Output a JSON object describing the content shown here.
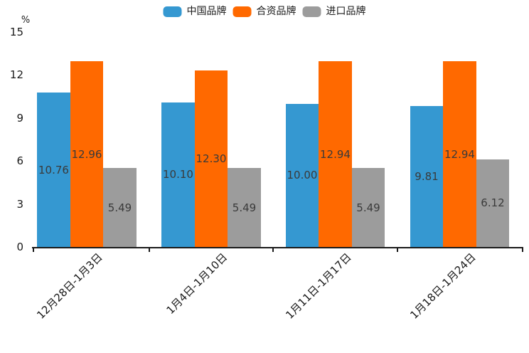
{
  "legend": {
    "position": "top",
    "items": [
      {
        "label": "中国品牌",
        "color": "#3598d1"
      },
      {
        "label": "合资品牌",
        "color": "#ff6900"
      },
      {
        "label": "进口品牌",
        "color": "#9c9c9c"
      }
    ]
  },
  "y_axis": {
    "unit_label": "%"
  },
  "chart_data": {
    "type": "bar",
    "title": "",
    "xlabel": "",
    "ylabel": "%",
    "ylim": [
      0,
      15
    ],
    "y_ticks": [
      0,
      3,
      6,
      9,
      12,
      15
    ],
    "grid": false,
    "legend_position": "top",
    "categories": [
      "12月28日-1月3日",
      "1月4日-1月10日",
      "1月11日-1月17日",
      "1月18日-1月24日"
    ],
    "series": [
      {
        "name": "中国品牌",
        "color": "#3598d1",
        "values": [
          10.76,
          10.1,
          10.0,
          9.81
        ]
      },
      {
        "name": "合资品牌",
        "color": "#ff6900",
        "values": [
          12.96,
          12.3,
          12.94,
          12.94
        ]
      },
      {
        "name": "进口品牌",
        "color": "#9c9c9c",
        "values": [
          5.49,
          5.49,
          5.49,
          6.12
        ]
      }
    ],
    "value_label_format": "2-decimals"
  }
}
